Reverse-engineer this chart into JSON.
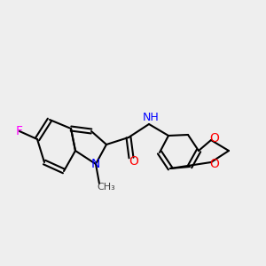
{
  "bg_color": "#eeeeee",
  "bond_color": "#000000",
  "bond_width": 1.5,
  "atom_colors": {
    "F": "#ff00ff",
    "N": "#0000ff",
    "O": "#ff0000",
    "C": "#000000",
    "H": "#888888"
  },
  "font_size": 9
}
